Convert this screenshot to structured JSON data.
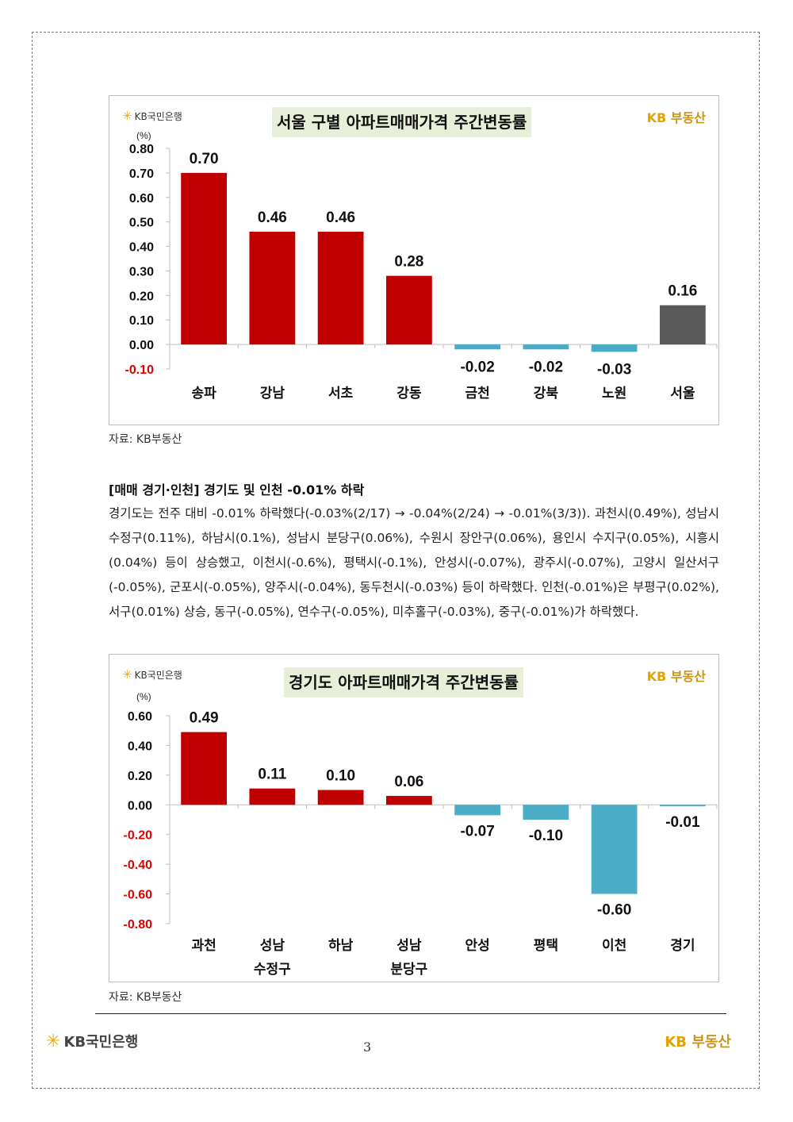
{
  "branding": {
    "bank_star": "✳",
    "bank_name": "KB국민은행",
    "estate_kb": "KB",
    "estate_name": "부동산"
  },
  "chart_data": [
    {
      "type": "bar",
      "title": "서울 구별 아파트매매가격 주간변동률",
      "ylabel": "(%)",
      "categories": [
        "송파",
        "강남",
        "서초",
        "강동",
        "금천",
        "강북",
        "노원",
        "서울"
      ],
      "values": [
        0.7,
        0.46,
        0.46,
        0.28,
        -0.02,
        -0.02,
        -0.03,
        0.16
      ],
      "value_labels": [
        "0.70",
        "0.46",
        "0.46",
        "0.28",
        "-0.02",
        "-0.02",
        "-0.03",
        "0.16"
      ],
      "ylim": [
        -0.1,
        0.8
      ],
      "ticks": [
        0.8,
        0.7,
        0.6,
        0.5,
        0.4,
        0.3,
        0.2,
        0.1,
        0.0,
        -0.1
      ],
      "tick_labels": [
        "0.80",
        "0.70",
        "0.60",
        "0.50",
        "0.40",
        "0.30",
        "0.20",
        "0.10",
        "0.00",
        "-0.10"
      ],
      "colors": {
        "positive": "#c00000",
        "negative": "#4bacc6",
        "total": "#595959",
        "neg_tick": "#e00000"
      }
    },
    {
      "type": "bar",
      "title": "경기도 아파트매매가격 주간변동률",
      "ylabel": "(%)",
      "categories": [
        [
          "과천"
        ],
        [
          "성남",
          "수정구"
        ],
        [
          "하남"
        ],
        [
          "성남",
          "분당구"
        ],
        [
          "안성"
        ],
        [
          "평택"
        ],
        [
          "이천"
        ],
        [
          "경기"
        ]
      ],
      "values": [
        0.49,
        0.11,
        0.1,
        0.06,
        -0.07,
        -0.1,
        -0.6,
        -0.01
      ],
      "value_labels": [
        "0.49",
        "0.11",
        "0.10",
        "0.06",
        "-0.07",
        "-0.10",
        "-0.60",
        "-0.01"
      ],
      "ylim": [
        -0.8,
        0.6
      ],
      "ticks": [
        0.6,
        0.4,
        0.2,
        0.0,
        -0.2,
        -0.4,
        -0.6,
        -0.8
      ],
      "tick_labels": [
        "0.60",
        "0.40",
        "0.20",
        "0.00",
        "-0.20",
        "-0.40",
        "-0.60",
        "-0.80"
      ],
      "colors": {
        "positive": "#c00000",
        "negative": "#4bacc6",
        "total": "#595959",
        "neg_tick": "#e00000"
      }
    }
  ],
  "source1": "자료: KB부동산",
  "section": {
    "heading": "[매매 경기·인천] 경기도 및 인천 -0.01% 하락",
    "body": "경기도는 전주 대비 -0.01% 하락했다(-0.03%(2/17) → -0.04%(2/24) → -0.01%(3/3)). 과천시(0.49%), 성남시 수정구(0.11%), 하남시(0.1%), 성남시 분당구(0.06%), 수원시 장안구(0.06%), 용인시 수지구(0.05%), 시흥시(0.04%) 등이 상승했고, 이천시(-0.6%), 평택시(-0.1%), 안성시(-0.07%), 광주시(-0.07%), 고양시 일산서구(-0.05%), 군포시(-0.05%), 양주시(-0.04%), 동두천시(-0.03%) 등이 하락했다. 인천(-0.01%)은 부평구(0.02%), 서구(0.01%) 상승, 동구(-0.05%), 연수구(-0.05%), 미추홀구(-0.03%), 중구(-0.01%)가 하락했다."
  },
  "source2": "자료: KB부동산",
  "footer": {
    "page_number": "3"
  }
}
